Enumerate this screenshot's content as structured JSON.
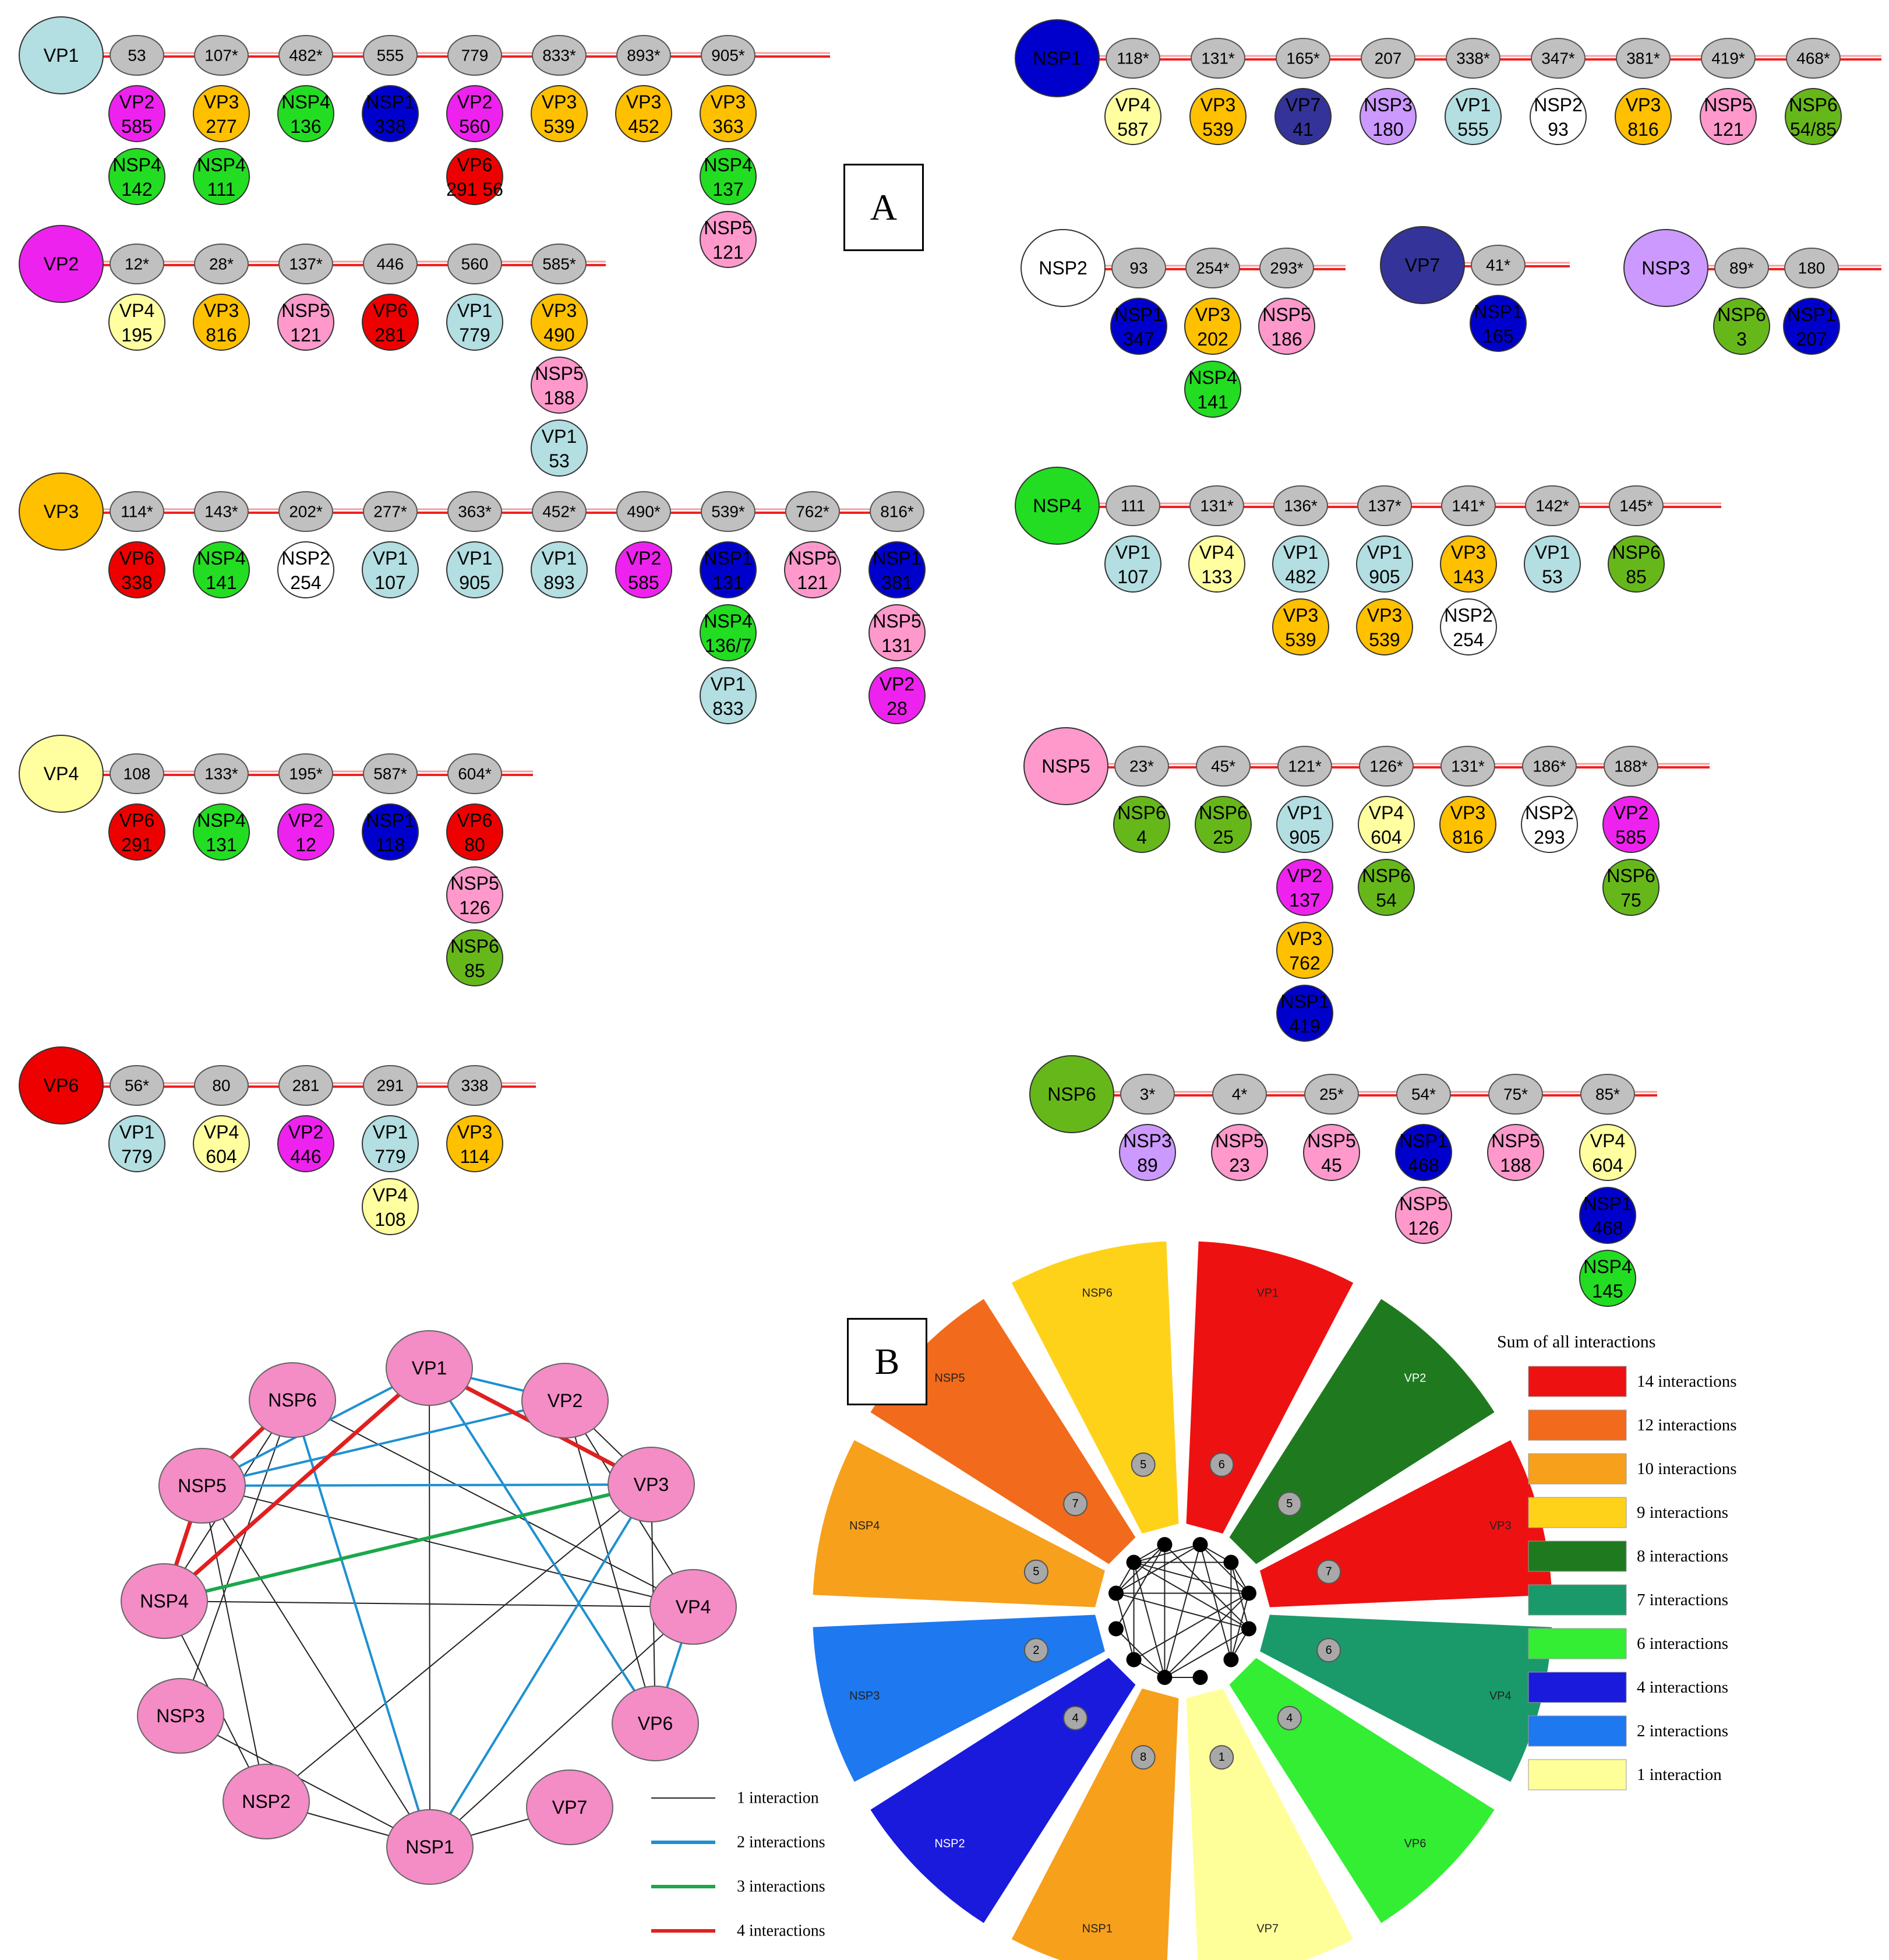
{
  "panel_labels": {
    "a": "A",
    "b": "B"
  },
  "colors": {
    "VP1": "#b3dee2",
    "VP2": "#ee22ee",
    "VP3": "#ffc000",
    "VP4": "#ffffa0",
    "VP6": "#ee0000",
    "VP7": "#333399",
    "NSP1": "#0000cc",
    "NSP2": "#ffffff",
    "NSP3": "#cc99ff",
    "NSP4": "#22dd22",
    "NSP5": "#ff99cc",
    "NSP6": "#66b81a",
    "position": "#c0c0c0",
    "line": "#ee2222"
  },
  "maps_left": [
    {
      "protein": "VP1",
      "sites": [
        {
          "pos": "53",
          "partners": [
            {
              "name": "VP2",
              "pos": "585"
            },
            {
              "name": "NSP4",
              "pos": "142"
            }
          ]
        },
        {
          "pos": "107*",
          "partners": [
            {
              "name": "VP3",
              "pos": "277"
            },
            {
              "name": "NSP4",
              "pos": "111"
            }
          ]
        },
        {
          "pos": "482*",
          "partners": [
            {
              "name": "NSP4",
              "pos": "136"
            }
          ]
        },
        {
          "pos": "555",
          "partners": [
            {
              "name": "NSP1",
              "pos": "338"
            }
          ]
        },
        {
          "pos": "779",
          "partners": [
            {
              "name": "VP2",
              "pos": "560"
            },
            {
              "name": "VP6",
              "pos": "291 56"
            }
          ]
        },
        {
          "pos": "833*",
          "partners": [
            {
              "name": "VP3",
              "pos": "539"
            }
          ]
        },
        {
          "pos": "893*",
          "partners": [
            {
              "name": "VP3",
              "pos": "452"
            }
          ]
        },
        {
          "pos": "905*",
          "partners": [
            {
              "name": "VP3",
              "pos": "363"
            },
            {
              "name": "NSP4",
              "pos": "137"
            },
            {
              "name": "NSP5",
              "pos": "121"
            }
          ]
        }
      ]
    },
    {
      "protein": "VP2",
      "sites": [
        {
          "pos": "12*",
          "partners": [
            {
              "name": "VP4",
              "pos": "195"
            }
          ]
        },
        {
          "pos": "28*",
          "partners": [
            {
              "name": "VP3",
              "pos": "816"
            }
          ]
        },
        {
          "pos": "137*",
          "partners": [
            {
              "name": "NSP5",
              "pos": "121"
            }
          ]
        },
        {
          "pos": "446",
          "partners": [
            {
              "name": "VP6",
              "pos": "281"
            }
          ]
        },
        {
          "pos": "560",
          "partners": [
            {
              "name": "VP1",
              "pos": "779"
            }
          ]
        },
        {
          "pos": "585*",
          "partners": [
            {
              "name": "VP3",
              "pos": "490"
            },
            {
              "name": "NSP5",
              "pos": "188"
            },
            {
              "name": "VP1",
              "pos": "53"
            }
          ]
        }
      ]
    },
    {
      "protein": "VP3",
      "sites": [
        {
          "pos": "114*",
          "partners": [
            {
              "name": "VP6",
              "pos": "338"
            }
          ]
        },
        {
          "pos": "143*",
          "partners": [
            {
              "name": "NSP4",
              "pos": "141"
            }
          ]
        },
        {
          "pos": "202*",
          "partners": [
            {
              "name": "NSP2",
              "pos": "254"
            }
          ]
        },
        {
          "pos": "277*",
          "partners": [
            {
              "name": "VP1",
              "pos": "107"
            }
          ]
        },
        {
          "pos": "363*",
          "partners": [
            {
              "name": "VP1",
              "pos": "905"
            }
          ]
        },
        {
          "pos": "452*",
          "partners": [
            {
              "name": "VP1",
              "pos": "893"
            }
          ]
        },
        {
          "pos": "490*",
          "partners": [
            {
              "name": "VP2",
              "pos": "585"
            }
          ]
        },
        {
          "pos": "539*",
          "partners": [
            {
              "name": "NSP1",
              "pos": "131"
            },
            {
              "name": "NSP4",
              "pos": "136/7"
            },
            {
              "name": "VP1",
              "pos": "833"
            }
          ]
        },
        {
          "pos": "762*",
          "partners": [
            {
              "name": "NSP5",
              "pos": "121"
            }
          ]
        },
        {
          "pos": "816*",
          "partners": [
            {
              "name": "NSP1",
              "pos": "381"
            },
            {
              "name": "NSP5",
              "pos": "131"
            },
            {
              "name": "VP2",
              "pos": "28"
            }
          ]
        }
      ]
    },
    {
      "protein": "VP4",
      "sites": [
        {
          "pos": "108",
          "partners": [
            {
              "name": "VP6",
              "pos": "291"
            }
          ]
        },
        {
          "pos": "133*",
          "partners": [
            {
              "name": "NSP4",
              "pos": "131"
            }
          ]
        },
        {
          "pos": "195*",
          "partners": [
            {
              "name": "VP2",
              "pos": "12"
            }
          ]
        },
        {
          "pos": "587*",
          "partners": [
            {
              "name": "NSP1",
              "pos": "118"
            }
          ]
        },
        {
          "pos": "604*",
          "partners": [
            {
              "name": "VP6",
              "pos": "80"
            },
            {
              "name": "NSP5",
              "pos": "126"
            },
            {
              "name": "NSP6",
              "pos": "85"
            }
          ]
        }
      ]
    },
    {
      "protein": "VP6",
      "sites": [
        {
          "pos": "56*",
          "partners": [
            {
              "name": "VP1",
              "pos": "779"
            }
          ]
        },
        {
          "pos": "80",
          "partners": [
            {
              "name": "VP4",
              "pos": "604"
            }
          ]
        },
        {
          "pos": "281",
          "partners": [
            {
              "name": "VP2",
              "pos": "446"
            }
          ]
        },
        {
          "pos": "291",
          "partners": [
            {
              "name": "VP1",
              "pos": "779"
            },
            {
              "name": "VP4",
              "pos": "108"
            }
          ]
        },
        {
          "pos": "338",
          "partners": [
            {
              "name": "VP3",
              "pos": "114"
            }
          ]
        }
      ]
    }
  ],
  "maps_right": [
    {
      "protein": "NSP1",
      "sites": [
        {
          "pos": "118*",
          "partners": [
            {
              "name": "VP4",
              "pos": "587"
            }
          ]
        },
        {
          "pos": "131*",
          "partners": [
            {
              "name": "VP3",
              "pos": "539"
            }
          ]
        },
        {
          "pos": "165*",
          "partners": [
            {
              "name": "VP7",
              "pos": "41"
            }
          ]
        },
        {
          "pos": "207",
          "partners": [
            {
              "name": "NSP3",
              "pos": "180"
            }
          ]
        },
        {
          "pos": "338*",
          "partners": [
            {
              "name": "VP1",
              "pos": "555"
            }
          ]
        },
        {
          "pos": "347*",
          "partners": [
            {
              "name": "NSP2",
              "pos": "93"
            }
          ]
        },
        {
          "pos": "381*",
          "partners": [
            {
              "name": "VP3",
              "pos": "816"
            }
          ]
        },
        {
          "pos": "419*",
          "partners": [
            {
              "name": "NSP5",
              "pos": "121"
            }
          ]
        },
        {
          "pos": "468*",
          "partners": [
            {
              "name": "NSP6",
              "pos": "54/85"
            }
          ]
        }
      ]
    },
    {
      "protein": "NSP2",
      "sites": [
        {
          "pos": "93",
          "partners": [
            {
              "name": "NSP1",
              "pos": "347"
            }
          ]
        },
        {
          "pos": "254*",
          "partners": [
            {
              "name": "VP3",
              "pos": "202"
            },
            {
              "name": "NSP4",
              "pos": "141"
            }
          ]
        },
        {
          "pos": "293*",
          "partners": [
            {
              "name": "NSP5",
              "pos": "186"
            }
          ]
        }
      ]
    },
    {
      "protein": "VP7",
      "sites": [
        {
          "pos": "41*",
          "partners": [
            {
              "name": "NSP1",
              "pos": "165"
            }
          ]
        }
      ]
    },
    {
      "protein": "NSP3",
      "sites": [
        {
          "pos": "89*",
          "partners": [
            {
              "name": "NSP6",
              "pos": "3"
            }
          ]
        },
        {
          "pos": "180",
          "partners": [
            {
              "name": "NSP1",
              "pos": "207"
            }
          ]
        }
      ]
    },
    {
      "protein": "NSP4",
      "sites": [
        {
          "pos": "111",
          "partners": [
            {
              "name": "VP1",
              "pos": "107"
            }
          ]
        },
        {
          "pos": "131*",
          "partners": [
            {
              "name": "VP4",
              "pos": "133"
            }
          ]
        },
        {
          "pos": "136*",
          "partners": [
            {
              "name": "VP1",
              "pos": "482"
            },
            {
              "name": "VP3",
              "pos": "539"
            }
          ]
        },
        {
          "pos": "137*",
          "partners": [
            {
              "name": "VP1",
              "pos": "905"
            },
            {
              "name": "VP3",
              "pos": "539"
            }
          ]
        },
        {
          "pos": "141*",
          "partners": [
            {
              "name": "VP3",
              "pos": "143"
            },
            {
              "name": "NSP2",
              "pos": "254"
            }
          ]
        },
        {
          "pos": "142*",
          "partners": [
            {
              "name": "VP1",
              "pos": "53"
            }
          ]
        },
        {
          "pos": "145*",
          "partners": [
            {
              "name": "NSP6",
              "pos": "85"
            }
          ]
        }
      ]
    },
    {
      "protein": "NSP5",
      "sites": [
        {
          "pos": "23*",
          "partners": [
            {
              "name": "NSP6",
              "pos": "4"
            }
          ]
        },
        {
          "pos": "45*",
          "partners": [
            {
              "name": "NSP6",
              "pos": "25"
            }
          ]
        },
        {
          "pos": "121*",
          "partners": [
            {
              "name": "VP1",
              "pos": "905"
            },
            {
              "name": "VP2",
              "pos": "137"
            },
            {
              "name": "VP3",
              "pos": "762"
            },
            {
              "name": "NSP1",
              "pos": "419"
            }
          ]
        },
        {
          "pos": "126*",
          "partners": [
            {
              "name": "VP4",
              "pos": "604"
            },
            {
              "name": "NSP6",
              "pos": "54"
            }
          ]
        },
        {
          "pos": "131*",
          "partners": [
            {
              "name": "VP3",
              "pos": "816"
            }
          ]
        },
        {
          "pos": "186*",
          "partners": [
            {
              "name": "NSP2",
              "pos": "293"
            }
          ]
        },
        {
          "pos": "188*",
          "partners": [
            {
              "name": "VP2",
              "pos": "585"
            },
            {
              "name": "NSP6",
              "pos": "75"
            }
          ]
        }
      ]
    },
    {
      "protein": "NSP6",
      "sites": [
        {
          "pos": "3*",
          "partners": [
            {
              "name": "NSP3",
              "pos": "89"
            }
          ]
        },
        {
          "pos": "4*",
          "partners": [
            {
              "name": "NSP5",
              "pos": "23"
            }
          ]
        },
        {
          "pos": "25*",
          "partners": [
            {
              "name": "NSP5",
              "pos": "45"
            }
          ]
        },
        {
          "pos": "54*",
          "partners": [
            {
              "name": "NSP1",
              "pos": "468"
            },
            {
              "name": "NSP5",
              "pos": "126"
            }
          ]
        },
        {
          "pos": "75*",
          "partners": [
            {
              "name": "NSP5",
              "pos": "188"
            }
          ]
        },
        {
          "pos": "85*",
          "partners": [
            {
              "name": "VP4",
              "pos": "604"
            },
            {
              "name": "NSP1",
              "pos": "468"
            },
            {
              "name": "NSP4",
              "pos": "145"
            }
          ]
        }
      ]
    }
  ],
  "network": {
    "node_color": "#f48cc6",
    "nodes": [
      "VP1",
      "VP2",
      "VP3",
      "VP4",
      "VP6",
      "VP7",
      "NSP1",
      "NSP2",
      "NSP3",
      "NSP4",
      "NSP5",
      "NSP6"
    ],
    "edges": [
      {
        "a": "VP1",
        "b": "VP3",
        "w": 4
      },
      {
        "a": "VP1",
        "b": "NSP4",
        "w": 4
      },
      {
        "a": "NSP6",
        "b": "NSP5",
        "w": 4
      },
      {
        "a": "NSP5",
        "b": "NSP4",
        "w": 4
      },
      {
        "a": "VP3",
        "b": "NSP4",
        "w": 3
      },
      {
        "a": "VP1",
        "b": "VP2",
        "w": 2
      },
      {
        "a": "VP1",
        "b": "VP6",
        "w": 2
      },
      {
        "a": "VP1",
        "b": "NSP5",
        "w": 2
      },
      {
        "a": "VP2",
        "b": "NSP5",
        "w": 2
      },
      {
        "a": "VP3",
        "b": "NSP1",
        "w": 2
      },
      {
        "a": "VP3",
        "b": "NSP5",
        "w": 2
      },
      {
        "a": "VP4",
        "b": "VP6",
        "w": 2
      },
      {
        "a": "NSP6",
        "b": "NSP1",
        "w": 2
      },
      {
        "a": "VP2",
        "b": "VP3",
        "w": 1
      },
      {
        "a": "VP2",
        "b": "VP4",
        "w": 1
      },
      {
        "a": "VP2",
        "b": "VP6",
        "w": 1
      },
      {
        "a": "VP3",
        "b": "VP6",
        "w": 1
      },
      {
        "a": "VP3",
        "b": "NSP2",
        "w": 1
      },
      {
        "a": "VP1",
        "b": "NSP1",
        "w": 1
      },
      {
        "a": "VP4",
        "b": "NSP1",
        "w": 1
      },
      {
        "a": "VP4",
        "b": "NSP4",
        "w": 1
      },
      {
        "a": "VP4",
        "b": "NSP5",
        "w": 1
      },
      {
        "a": "VP4",
        "b": "NSP6",
        "w": 1
      },
      {
        "a": "VP7",
        "b": "NSP1",
        "w": 1
      },
      {
        "a": "NSP1",
        "b": "NSP2",
        "w": 1
      },
      {
        "a": "NSP1",
        "b": "NSP3",
        "w": 1
      },
      {
        "a": "NSP1",
        "b": "NSP5",
        "w": 1
      },
      {
        "a": "NSP2",
        "b": "NSP4",
        "w": 1
      },
      {
        "a": "NSP2",
        "b": "NSP5",
        "w": 1
      },
      {
        "a": "NSP3",
        "b": "NSP6",
        "w": 1
      },
      {
        "a": "NSP4",
        "b": "NSP6",
        "w": 1
      }
    ],
    "legend": [
      {
        "label": "1 interaction",
        "color": "#222222"
      },
      {
        "label": "2 interactions",
        "color": "#1e90d0"
      },
      {
        "label": "3 interactions",
        "color": "#1aa84a"
      },
      {
        "label": "4 interactions",
        "color": "#e02020"
      }
    ]
  },
  "wheel": {
    "legend_title": "Sum of all interactions",
    "sectors": [
      {
        "name": "VP1",
        "count": 6,
        "total": 14
      },
      {
        "name": "VP2",
        "count": 5,
        "total": 8
      },
      {
        "name": "VP3",
        "count": 7,
        "total": 14
      },
      {
        "name": "VP4",
        "count": 6,
        "total": 7
      },
      {
        "name": "VP6",
        "count": 4,
        "total": 6
      },
      {
        "name": "VP7",
        "count": 1,
        "total": 1
      },
      {
        "name": "NSP1",
        "count": 8,
        "total": 10
      },
      {
        "name": "NSP2",
        "count": 4,
        "total": 4
      },
      {
        "name": "NSP3",
        "count": 2,
        "total": 2
      },
      {
        "name": "NSP4",
        "count": 5,
        "total": 10
      },
      {
        "name": "NSP5",
        "count": 7,
        "total": 12
      },
      {
        "name": "NSP6",
        "count": 5,
        "total": 9
      }
    ],
    "legend": [
      {
        "label": "14 interactions",
        "color": "#ee1111"
      },
      {
        "label": "12 interactions",
        "color": "#f26a1b"
      },
      {
        "label": "10 interactions",
        "color": "#f7a01c"
      },
      {
        "label": "9 interactions",
        "color": "#ffd21a"
      },
      {
        "label": "8 interactions",
        "color": "#1f7a1f"
      },
      {
        "label": "7 interactions",
        "color": "#1a9a6a"
      },
      {
        "label": "6 interactions",
        "color": "#33ee33"
      },
      {
        "label": "4 interactions",
        "color": "#1a1add"
      },
      {
        "label": "2 interactions",
        "color": "#1e78ef"
      },
      {
        "label": "1 interaction",
        "color": "#ffff99"
      }
    ]
  }
}
